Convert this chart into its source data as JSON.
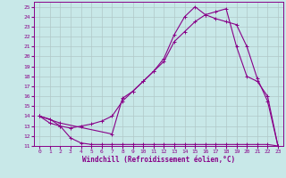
{
  "background_color": "#c8e8e8",
  "grid_color": "#b0c8c8",
  "line_color": "#880088",
  "xlabel": "Windchill (Refroidissement éolien,°C)",
  "xlim": [
    -0.5,
    23.5
  ],
  "ylim": [
    11,
    25.5
  ],
  "xticks": [
    0,
    1,
    2,
    3,
    4,
    5,
    6,
    7,
    8,
    9,
    10,
    11,
    12,
    13,
    14,
    15,
    16,
    17,
    18,
    19,
    20,
    21,
    22,
    23
  ],
  "yticks": [
    11,
    12,
    13,
    14,
    15,
    16,
    17,
    18,
    19,
    20,
    21,
    22,
    23,
    24,
    25
  ],
  "line1_x": [
    0,
    1,
    2,
    3,
    4,
    5,
    6,
    7,
    8,
    9,
    10,
    11,
    12,
    13,
    14,
    15,
    16,
    17,
    18,
    19,
    20,
    21,
    22,
    23
  ],
  "line1_y": [
    14.0,
    13.7,
    13.0,
    11.8,
    11.3,
    11.15,
    11.15,
    11.15,
    11.15,
    11.15,
    11.15,
    11.15,
    11.15,
    11.15,
    11.15,
    11.15,
    11.15,
    11.15,
    11.15,
    11.15,
    11.15,
    11.15,
    11.15,
    11.0
  ],
  "line2_x": [
    0,
    1,
    2,
    3,
    4,
    5,
    6,
    7,
    8,
    9,
    10,
    11,
    12,
    13,
    14,
    15,
    16,
    17,
    18,
    19,
    20,
    21,
    22,
    23
  ],
  "line2_y": [
    14.0,
    13.3,
    13.0,
    12.8,
    13.0,
    13.2,
    13.5,
    14.0,
    15.5,
    16.5,
    17.5,
    18.5,
    19.5,
    21.5,
    22.5,
    23.5,
    24.2,
    24.5,
    24.8,
    21.0,
    18.0,
    17.5,
    16.0,
    11.0
  ],
  "line3_x": [
    0,
    2,
    7,
    8,
    9,
    10,
    11,
    12,
    13,
    14,
    15,
    16,
    17,
    18,
    19,
    20,
    21,
    22,
    23
  ],
  "line3_y": [
    14.0,
    13.3,
    12.2,
    15.8,
    16.5,
    17.5,
    18.5,
    19.8,
    22.2,
    24.0,
    25.0,
    24.2,
    23.8,
    23.5,
    23.2,
    21.0,
    17.8,
    15.5,
    11.0
  ],
  "marker": "+"
}
